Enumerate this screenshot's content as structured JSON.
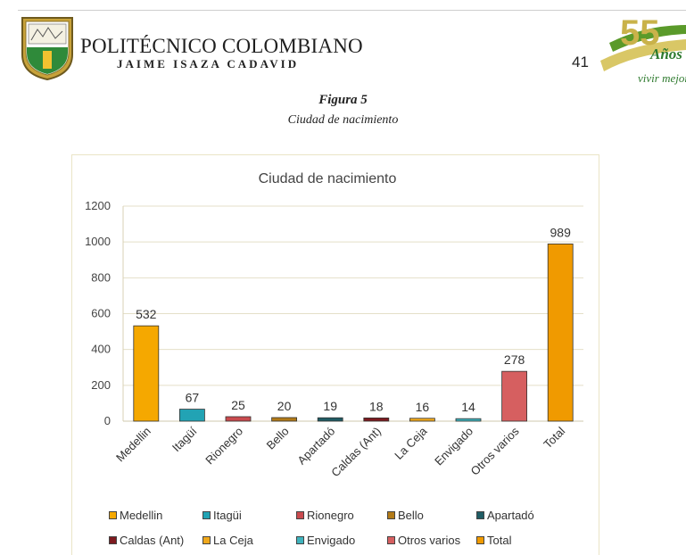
{
  "header": {
    "institution_name": "POLITÉCNICO COLOMBIANO",
    "institution_subtitle": "JAIME ISAZA CADAVID",
    "page_number": "41",
    "anniversary_number": "55",
    "anniversary_word": "Años",
    "anniversary_motto": "vivir mejor"
  },
  "figure": {
    "label": "Figura 5",
    "caption": "Ciudad de nacimiento"
  },
  "chart_data": {
    "type": "bar",
    "title": "Ciudad de nacimiento",
    "categories": [
      "Medellin",
      "Itagüí",
      "Rionegro",
      "Bello",
      "Apartadó",
      "Caldas (Ant)",
      "La Ceja",
      "Envigado",
      "Otros varios",
      "Total"
    ],
    "values": [
      532,
      67,
      25,
      20,
      19,
      18,
      16,
      14,
      278,
      989
    ],
    "data_labels": [
      "532",
      "67",
      "25",
      "20",
      "19",
      "18",
      "16",
      "14",
      "278",
      "989"
    ],
    "colors": [
      "#f5a800",
      "#22a3b4",
      "#c94a4e",
      "#b27a17",
      "#1f5c64",
      "#7d1a1f",
      "#f0a81c",
      "#3fb3bd",
      "#d65f60",
      "#f09a00"
    ],
    "ylim": [
      0,
      1200
    ],
    "yticks": [
      "0",
      "200",
      "400",
      "600",
      "800",
      "1000",
      "1200"
    ],
    "grid": true,
    "legend_position": "bottom",
    "legend": [
      "Medellin",
      "Itagüi",
      "Rionegro",
      "Bello",
      "Apartadó",
      "Caldas (Ant)",
      "La Ceja",
      "Envigado",
      "Otros varios",
      "Total"
    ]
  }
}
